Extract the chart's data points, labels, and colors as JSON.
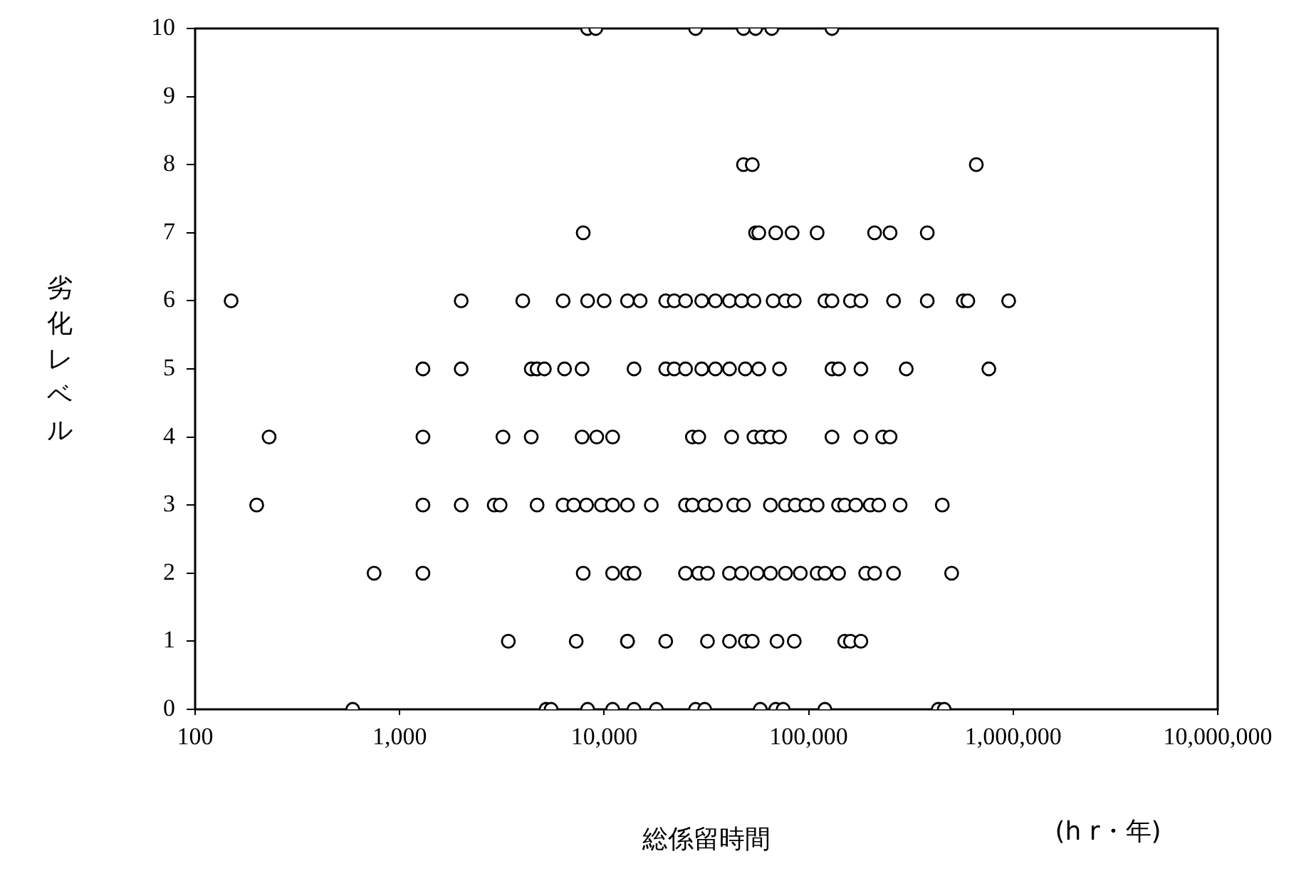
{
  "chart_data": {
    "type": "scatter",
    "xlabel": "総係留時間",
    "ylabel": "劣化レベル",
    "annotations": [
      "(h r・年)"
    ],
    "log": "x",
    "xlim": [
      100,
      10000000
    ],
    "xticks": [
      100,
      {
        "value": 1000,
        "label": "1,000"
      },
      {
        "value": 10000,
        "label": "10,000"
      },
      {
        "value": 100000,
        "label": "100,000"
      },
      {
        "value": 1000000,
        "label": "1,000,000"
      },
      {
        "value": 10000000,
        "label": "10,000,000"
      }
    ],
    "ylim": [
      0,
      10
    ],
    "yticks": [
      0,
      1,
      2,
      3,
      4,
      5,
      6,
      7,
      8,
      9,
      10
    ],
    "grid": false,
    "legend": false,
    "marker": "circle",
    "series": [
      {
        "color": "#000000",
        "x": [
          8300,
          9100,
          28000,
          48000,
          55000,
          66000,
          130000,
          48000,
          53000,
          660000,
          7900,
          55000,
          57000,
          69000,
          83000,
          110000,
          210000,
          250000,
          380000,
          150,
          2000,
          4000,
          6300,
          8300,
          10000,
          13000,
          15000,
          20000,
          22000,
          25000,
          30000,
          35000,
          41000,
          47000,
          54000,
          67000,
          77000,
          85000,
          120000,
          130000,
          160000,
          180000,
          260000,
          380000,
          570000,
          600000,
          950000,
          1300,
          2000,
          4400,
          4700,
          5100,
          6400,
          7800,
          14000,
          20000,
          22000,
          25000,
          30000,
          35000,
          41000,
          49000,
          57000,
          72000,
          130000,
          140000,
          180000,
          300000,
          760000,
          230,
          1300,
          3200,
          4400,
          7800,
          9200,
          11000,
          27000,
          29000,
          42000,
          54000,
          59000,
          65000,
          72000,
          130000,
          180000,
          230000,
          250000,
          200,
          1300,
          2000,
          2900,
          3100,
          4700,
          6300,
          7100,
          8200,
          9700,
          11000,
          13000,
          17000,
          25000,
          27000,
          31000,
          35000,
          43000,
          48000,
          65000,
          77000,
          86000,
          97000,
          110000,
          140000,
          150000,
          170000,
          200000,
          220000,
          280000,
          450000,
          750,
          1300,
          7900,
          11000,
          13000,
          14000,
          25000,
          29000,
          32000,
          41000,
          47000,
          56000,
          65000,
          77000,
          91000,
          110000,
          120000,
          140000,
          190000,
          210000,
          260000,
          500000,
          3400,
          7300,
          13000,
          13000,
          20000,
          32000,
          41000,
          49000,
          53000,
          70000,
          85000,
          150000,
          160000,
          180000,
          590,
          5200,
          5500,
          8300,
          11000,
          14000,
          18000,
          28000,
          31000,
          58000,
          69000,
          75000,
          120000,
          430000,
          460000
        ],
        "values": [
          10,
          10,
          10,
          10,
          10,
          10,
          10,
          8,
          8,
          8,
          7,
          7,
          7,
          7,
          7,
          7,
          7,
          7,
          7,
          6,
          6,
          6,
          6,
          6,
          6,
          6,
          6,
          6,
          6,
          6,
          6,
          6,
          6,
          6,
          6,
          6,
          6,
          6,
          6,
          6,
          6,
          6,
          6,
          6,
          6,
          6,
          6,
          5,
          5,
          5,
          5,
          5,
          5,
          5,
          5,
          5,
          5,
          5,
          5,
          5,
          5,
          5,
          5,
          5,
          5,
          5,
          5,
          5,
          5,
          4,
          4,
          4,
          4,
          4,
          4,
          4,
          4,
          4,
          4,
          4,
          4,
          4,
          4,
          4,
          4,
          4,
          4,
          3,
          3,
          3,
          3,
          3,
          3,
          3,
          3,
          3,
          3,
          3,
          3,
          3,
          3,
          3,
          3,
          3,
          3,
          3,
          3,
          3,
          3,
          3,
          3,
          3,
          3,
          3,
          3,
          3,
          3,
          3,
          2,
          2,
          2,
          2,
          2,
          2,
          2,
          2,
          2,
          2,
          2,
          2,
          2,
          2,
          2,
          2,
          2,
          2,
          2,
          2,
          2,
          2,
          1,
          1,
          1,
          1,
          1,
          1,
          1,
          1,
          1,
          1,
          1,
          1,
          1,
          1,
          0,
          0,
          0,
          0,
          0,
          0,
          0,
          0,
          0,
          0,
          0,
          0,
          0,
          0,
          0
        ]
      }
    ]
  }
}
